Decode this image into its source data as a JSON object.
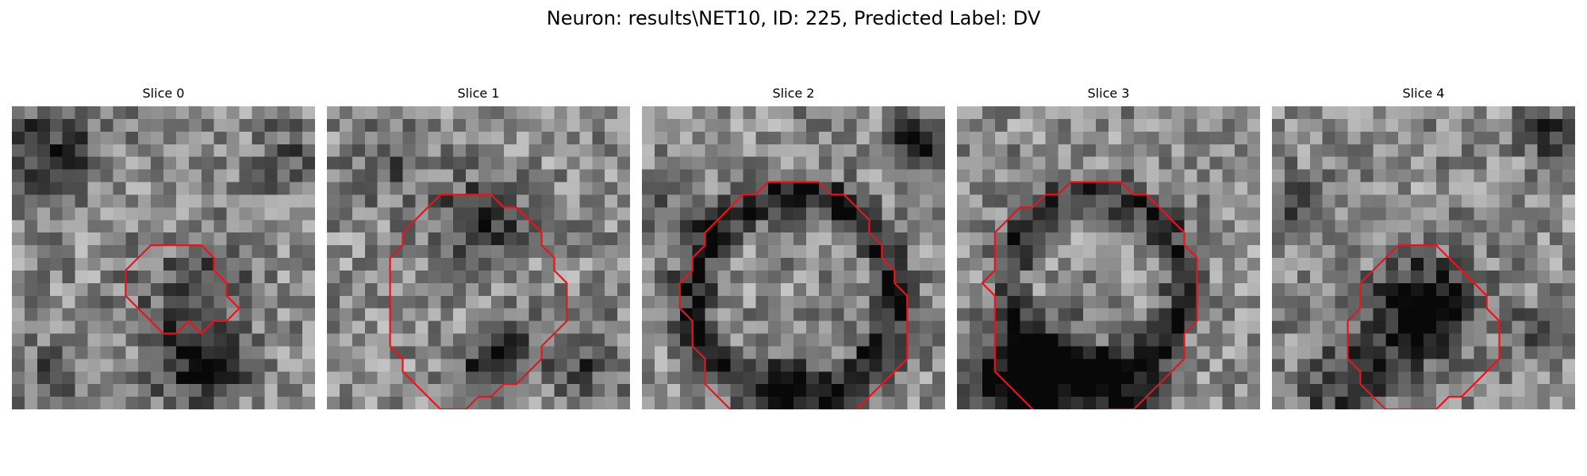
{
  "figure": {
    "title": "Neuron: results\\NET10, ID: 225, Predicted Label: DV"
  },
  "style": {
    "contour_color": "#e8141b"
  },
  "slices": [
    {
      "title": "Slice 0",
      "contour": [
        [
          13,
          11
        ],
        [
          15,
          11
        ],
        [
          16,
          12
        ],
        [
          16,
          13
        ],
        [
          17,
          14
        ],
        [
          17,
          15
        ],
        [
          18,
          16
        ],
        [
          17,
          17
        ],
        [
          16,
          17
        ],
        [
          15,
          18
        ],
        [
          14,
          17
        ],
        [
          13,
          18
        ],
        [
          12,
          18
        ],
        [
          11,
          17
        ],
        [
          10,
          16
        ],
        [
          9,
          15
        ],
        [
          9,
          13
        ],
        [
          10,
          12
        ],
        [
          11,
          11
        ]
      ]
    },
    {
      "title": "Slice 1",
      "contour": [
        [
          10,
          7
        ],
        [
          13,
          7
        ],
        [
          14,
          8
        ],
        [
          15,
          8
        ],
        [
          16,
          9
        ],
        [
          17,
          10
        ],
        [
          17,
          11
        ],
        [
          18,
          12
        ],
        [
          18,
          13
        ],
        [
          19,
          14
        ],
        [
          19,
          17
        ],
        [
          18,
          18
        ],
        [
          17,
          19
        ],
        [
          17,
          20
        ],
        [
          16,
          21
        ],
        [
          15,
          22
        ],
        [
          14,
          22
        ],
        [
          13,
          23
        ],
        [
          12,
          23
        ],
        [
          11,
          24
        ],
        [
          9,
          24
        ],
        [
          8,
          23
        ],
        [
          7,
          22
        ],
        [
          6,
          21
        ],
        [
          6,
          20
        ],
        [
          5,
          19
        ],
        [
          5,
          12
        ],
        [
          6,
          11
        ],
        [
          6,
          10
        ],
        [
          7,
          9
        ],
        [
          8,
          8
        ],
        [
          9,
          7
        ]
      ]
    },
    {
      "title": "Slice 2",
      "contour": [
        [
          11,
          6
        ],
        [
          12,
          6
        ],
        [
          14,
          6
        ],
        [
          15,
          7
        ],
        [
          16,
          7
        ],
        [
          17,
          8
        ],
        [
          18,
          9
        ],
        [
          18,
          10
        ],
        [
          19,
          11
        ],
        [
          19,
          12
        ],
        [
          20,
          13
        ],
        [
          20,
          14
        ],
        [
          21,
          15
        ],
        [
          21,
          20
        ],
        [
          20,
          21
        ],
        [
          19,
          22
        ],
        [
          18,
          23
        ],
        [
          17,
          24
        ],
        [
          16,
          25
        ],
        [
          15,
          25
        ],
        [
          14,
          26
        ],
        [
          13,
          26
        ],
        [
          11,
          27
        ],
        [
          10,
          27
        ],
        [
          9,
          26
        ],
        [
          8,
          25
        ],
        [
          7,
          24
        ],
        [
          6,
          23
        ],
        [
          5,
          22
        ],
        [
          5,
          20
        ],
        [
          4,
          19
        ],
        [
          4,
          17
        ],
        [
          3,
          16
        ],
        [
          3,
          14
        ],
        [
          4,
          13
        ],
        [
          4,
          12
        ],
        [
          5,
          11
        ],
        [
          5,
          10
        ],
        [
          6,
          9
        ],
        [
          7,
          8
        ],
        [
          8,
          7
        ],
        [
          9,
          7
        ],
        [
          10,
          6
        ]
      ]
    },
    {
      "title": "Slice 3",
      "contour": [
        [
          9,
          6
        ],
        [
          13,
          6
        ],
        [
          14,
          7
        ],
        [
          15,
          7
        ],
        [
          16,
          8
        ],
        [
          17,
          9
        ],
        [
          18,
          10
        ],
        [
          18,
          11
        ],
        [
          19,
          12
        ],
        [
          19,
          17
        ],
        [
          18,
          18
        ],
        [
          18,
          20
        ],
        [
          17,
          21
        ],
        [
          16,
          22
        ],
        [
          15,
          23
        ],
        [
          14,
          24
        ],
        [
          12,
          24
        ],
        [
          11,
          25
        ],
        [
          10,
          25
        ],
        [
          9,
          26
        ],
        [
          8,
          26
        ],
        [
          7,
          25
        ],
        [
          6,
          24
        ],
        [
          5,
          23
        ],
        [
          4,
          22
        ],
        [
          3,
          21
        ],
        [
          3,
          15
        ],
        [
          2,
          14
        ],
        [
          3,
          13
        ],
        [
          3,
          10
        ],
        [
          4,
          9
        ],
        [
          5,
          8
        ],
        [
          6,
          8
        ],
        [
          7,
          7
        ],
        [
          8,
          7
        ]
      ]
    },
    {
      "title": "Slice 4",
      "contour": [
        [
          10,
          11
        ],
        [
          13,
          11
        ],
        [
          14,
          12
        ],
        [
          15,
          13
        ],
        [
          16,
          14
        ],
        [
          17,
          15
        ],
        [
          17,
          16
        ],
        [
          18,
          17
        ],
        [
          18,
          20
        ],
        [
          17,
          21
        ],
        [
          16,
          22
        ],
        [
          15,
          23
        ],
        [
          14,
          23
        ],
        [
          13,
          24
        ],
        [
          9,
          24
        ],
        [
          8,
          23
        ],
        [
          7,
          22
        ],
        [
          7,
          21
        ],
        [
          6,
          20
        ],
        [
          6,
          17
        ],
        [
          7,
          16
        ],
        [
          7,
          14
        ],
        [
          8,
          13
        ],
        [
          9,
          12
        ]
      ]
    }
  ]
}
